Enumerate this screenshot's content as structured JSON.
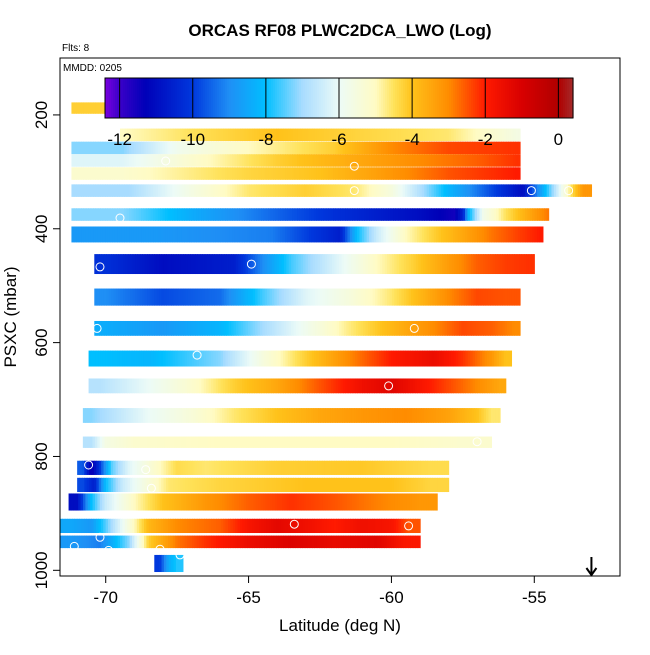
{
  "chart_data": {
    "type": "heatmap",
    "title": "ORCAS RF08 PLWC2DCA_LWO (Log)",
    "top_left_note": "Flts: 8",
    "panel_note": "MMDD: 0205",
    "xlabel": "Latitude (deg N)",
    "ylabel": "PSXC (mbar)",
    "xlim": [
      -71.6,
      -52.0
    ],
    "ylim": [
      1010,
      100
    ],
    "y_reversed": true,
    "grid": false,
    "x_ticks": [
      -70,
      -65,
      -60,
      -55
    ],
    "y_ticks": [
      200,
      400,
      600,
      800,
      1000
    ],
    "colorbar": {
      "position": "top-inside",
      "range": [
        -12.4,
        0.4
      ],
      "ticks": [
        -12,
        -10,
        -8,
        -6,
        -4,
        -2,
        0
      ],
      "stops": [
        {
          "v": -12.4,
          "c": "#7a00e0"
        },
        {
          "v": -12.0,
          "c": "#3a00c8"
        },
        {
          "v": -11.3,
          "c": "#0000b8"
        },
        {
          "v": -10.0,
          "c": "#0038dd"
        },
        {
          "v": -9.0,
          "c": "#1f8ff5"
        },
        {
          "v": -8.0,
          "c": "#00bfff"
        },
        {
          "v": -7.0,
          "c": "#a8dcff"
        },
        {
          "v": -6.0,
          "c": "#ecfbf7"
        },
        {
          "v": -5.0,
          "c": "#fffbc4"
        },
        {
          "v": -4.5,
          "c": "#ffe25a"
        },
        {
          "v": -4.0,
          "c": "#ffc21a"
        },
        {
          "v": -3.0,
          "c": "#ff8c00"
        },
        {
          "v": -2.0,
          "c": "#ff1a00"
        },
        {
          "v": -1.0,
          "c": "#d80000"
        },
        {
          "v": 0.0,
          "c": "#b00000"
        },
        {
          "v": 0.4,
          "c": "#a52a2a"
        }
      ]
    },
    "bands": [
      {
        "p": 188,
        "h": 20,
        "x0": -71.2,
        "x1": -56.0,
        "cells": [
          [
            -62.8,
            -4.2
          ],
          [
            -61.0,
            -4.6
          ],
          [
            -59.0,
            -6.0
          ],
          [
            -56.7,
            -8.0
          ]
        ]
      },
      {
        "p": 235,
        "h": 22,
        "x0": -69.5,
        "x1": -55.5,
        "cells": [
          [
            -69.4,
            -5.0
          ],
          [
            -67.0,
            -4.5
          ],
          [
            -64.0,
            -4.0
          ],
          [
            -61.0,
            -4.3
          ],
          [
            -58.0,
            -4.6
          ],
          [
            -55.6,
            -5.6
          ]
        ]
      },
      {
        "p": 258,
        "h": 22,
        "x0": -71.2,
        "x1": -55.5,
        "cells": [
          [
            -69.4,
            -7.2
          ],
          [
            -67.5,
            -5.8
          ],
          [
            -65.0,
            -5.0
          ],
          [
            -62.0,
            -4.2
          ],
          [
            -60.0,
            -3.0
          ],
          [
            -58.0,
            -2.4
          ],
          [
            -55.6,
            -2.2
          ]
        ]
      },
      {
        "p": 280,
        "h": 22,
        "x0": -71.2,
        "x1": -55.5,
        "cells": [
          [
            -69.4,
            -6.2
          ],
          [
            -67.0,
            -5.2
          ],
          [
            -64.0,
            -4.2
          ],
          [
            -61.5,
            -3.6
          ],
          [
            -59.0,
            -3.0
          ],
          [
            -57.0,
            -2.6
          ],
          [
            -55.6,
            -2.2
          ]
        ]
      },
      {
        "p": 303,
        "h": 22,
        "x0": -71.2,
        "x1": -55.5,
        "cells": [
          [
            -69.4,
            -5.2
          ],
          [
            -67.5,
            -4.8
          ],
          [
            -65.0,
            -4.3
          ],
          [
            -62.5,
            -4.0
          ],
          [
            -60.0,
            -3.2
          ],
          [
            -58.0,
            -2.5
          ],
          [
            -55.6,
            -2.0
          ]
        ]
      },
      {
        "p": 333,
        "h": 22,
        "x0": -71.2,
        "x1": -53.0,
        "cells": [
          [
            -69.2,
            -7.0
          ],
          [
            -67.0,
            -5.6
          ],
          [
            -65.0,
            -4.6
          ],
          [
            -63.0,
            -4.2
          ],
          [
            -61.3,
            -4.6
          ],
          [
            -60.0,
            -5.5
          ],
          [
            -58.0,
            -8.2
          ],
          [
            -56.3,
            -10.0
          ],
          [
            -55.4,
            -11.0
          ],
          [
            -55.0,
            -9.5
          ],
          [
            -54.6,
            -8.0
          ],
          [
            -54.2,
            -6.5
          ],
          [
            -53.7,
            -4.5
          ],
          [
            -53.3,
            -3.2
          ]
        ]
      },
      {
        "p": 375,
        "h": 22,
        "x0": -71.2,
        "x1": -54.5,
        "cells": [
          [
            -69.4,
            -7.2
          ],
          [
            -67.0,
            -8.4
          ],
          [
            -64.0,
            -9.5
          ],
          [
            -62.0,
            -10.2
          ],
          [
            -59.0,
            -11.0
          ],
          [
            -57.8,
            -11.5
          ],
          [
            -57.5,
            -10.5
          ],
          [
            -57.3,
            -8.2
          ],
          [
            -56.8,
            -5.8
          ],
          [
            -56.0,
            -4.5
          ],
          [
            -55.0,
            -3.3
          ],
          [
            -54.3,
            -2.6
          ]
        ]
      },
      {
        "p": 410,
        "h": 28,
        "x0": -71.2,
        "x1": -54.7,
        "cells": [
          [
            -68.2,
            -8.8
          ],
          [
            -64.2,
            -9.2
          ],
          [
            -61.8,
            -10.6
          ],
          [
            -61.2,
            -8.0
          ],
          [
            -60.5,
            -6.5
          ],
          [
            -59.5,
            -5.0
          ],
          [
            -58.5,
            -4.2
          ],
          [
            -57.5,
            -3.5
          ],
          [
            -56.5,
            -2.8
          ],
          [
            -55.5,
            -2.3
          ],
          [
            -54.8,
            -2.0
          ]
        ]
      },
      {
        "p": 462,
        "h": 35,
        "x0": -70.4,
        "x1": -55.0,
        "cells": [
          [
            -70.0,
            -10.2
          ],
          [
            -68.0,
            -11.0
          ],
          [
            -65.5,
            -10.6
          ],
          [
            -64.5,
            -9.0
          ],
          [
            -63.5,
            -7.6
          ],
          [
            -62.0,
            -6.3
          ],
          [
            -60.5,
            -5.0
          ],
          [
            -59.2,
            -4.2
          ],
          [
            -58.0,
            -3.3
          ],
          [
            -57.0,
            -2.6
          ],
          [
            -56.0,
            -2.3
          ],
          [
            -55.2,
            -2.2
          ]
        ]
      },
      {
        "p": 520,
        "h": 30,
        "x0": -70.4,
        "x1": -55.5,
        "cells": [
          [
            -70.0,
            -9.0
          ],
          [
            -68.0,
            -9.8
          ],
          [
            -66.0,
            -9.4
          ],
          [
            -64.5,
            -7.6
          ],
          [
            -63.0,
            -6.2
          ],
          [
            -61.5,
            -5.5
          ],
          [
            -60.0,
            -4.6
          ],
          [
            -59.0,
            -3.8
          ],
          [
            -58.0,
            -3.0
          ],
          [
            -57.0,
            -2.4
          ],
          [
            -56.0,
            -2.5
          ]
        ]
      },
      {
        "p": 575,
        "h": 26,
        "x0": -70.4,
        "x1": -55.5,
        "cells": [
          [
            -70.0,
            -8.4
          ],
          [
            -68.0,
            -8.8
          ],
          [
            -66.0,
            -8.2
          ],
          [
            -64.5,
            -7.0
          ],
          [
            -63.0,
            -5.8
          ],
          [
            -61.5,
            -4.7
          ],
          [
            -60.0,
            -3.8
          ],
          [
            -58.5,
            -3.0
          ],
          [
            -57.5,
            -2.4
          ],
          [
            -56.5,
            -2.6
          ],
          [
            -55.7,
            -3.0
          ]
        ]
      },
      {
        "p": 628,
        "h": 28,
        "x0": -70.6,
        "x1": -55.8,
        "cells": [
          [
            -70.2,
            -8.0
          ],
          [
            -68.5,
            -8.2
          ],
          [
            -67.0,
            -7.6
          ],
          [
            -66.0,
            -7.2
          ],
          [
            -64.5,
            -5.5
          ],
          [
            -63.0,
            -4.2
          ],
          [
            -61.5,
            -3.0
          ],
          [
            -60.0,
            -2.0
          ],
          [
            -58.5,
            -1.5
          ],
          [
            -57.5,
            -2.2
          ],
          [
            -56.5,
            -3.2
          ],
          [
            -56.0,
            -4.0
          ]
        ]
      },
      {
        "p": 676,
        "h": 26,
        "x0": -70.6,
        "x1": -56.0,
        "cells": [
          [
            -70.2,
            -6.8
          ],
          [
            -68.5,
            -6.0
          ],
          [
            -67.0,
            -5.2
          ],
          [
            -65.5,
            -4.2
          ],
          [
            -64.0,
            -3.5
          ],
          [
            -62.5,
            -2.5
          ],
          [
            -61.0,
            -1.6
          ],
          [
            -60.0,
            -1.2
          ],
          [
            -59.0,
            -1.8
          ],
          [
            -58.0,
            -2.4
          ],
          [
            -57.0,
            -3.0
          ],
          [
            -56.2,
            -3.5
          ]
        ]
      },
      {
        "p": 728,
        "h": 26,
        "x0": -70.8,
        "x1": -56.2,
        "cells": [
          [
            -70.5,
            -7.2
          ],
          [
            -68.5,
            -6.0
          ],
          [
            -67.0,
            -5.4
          ],
          [
            -65.5,
            -4.6
          ],
          [
            -64.0,
            -4.0
          ],
          [
            -62.5,
            -3.5
          ],
          [
            -61.0,
            -3.2
          ],
          [
            -59.5,
            -3.0
          ],
          [
            -58.0,
            -3.4
          ],
          [
            -57.0,
            -4.0
          ],
          [
            -56.5,
            -4.6
          ]
        ]
      },
      {
        "p": 775,
        "h": 20,
        "x0": -70.8,
        "x1": -56.5,
        "cells": [
          [
            -70.5,
            -6.8
          ],
          [
            -70.0,
            -5.6
          ],
          [
            -69.0,
            -5.2
          ],
          [
            -66.0,
            -5.0
          ],
          [
            -63.0,
            -5.0
          ],
          [
            -60.0,
            -5.0
          ],
          [
            -57.5,
            -5.2
          ]
        ]
      },
      {
        "p": 820,
        "h": 25,
        "x0": -71.0,
        "x1": -58.0,
        "cells": [
          [
            -70.8,
            -9.6
          ],
          [
            -70.5,
            -11.6
          ],
          [
            -70.2,
            -10.0
          ],
          [
            -69.8,
            -7.5
          ],
          [
            -69.2,
            -6.2
          ],
          [
            -68.3,
            -5.2
          ],
          [
            -67.5,
            -4.4
          ],
          [
            -66.5,
            -4.6
          ],
          [
            -64.0,
            -4.2
          ],
          [
            -61.0,
            -4.1
          ],
          [
            -58.6,
            -4.4
          ]
        ]
      },
      {
        "p": 850,
        "h": 25,
        "x0": -71.0,
        "x1": -58.0,
        "cells": [
          [
            -70.8,
            -9.8
          ],
          [
            -70.4,
            -10.6
          ],
          [
            -70.0,
            -8.0
          ],
          [
            -69.4,
            -6.5
          ],
          [
            -68.6,
            -5.5
          ],
          [
            -67.8,
            -4.6
          ],
          [
            -66.0,
            -4.3
          ],
          [
            -63.0,
            -4.0
          ],
          [
            -60.0,
            -4.0
          ],
          [
            -58.6,
            -4.3
          ]
        ]
      },
      {
        "p": 880,
        "h": 30,
        "x0": -71.3,
        "x1": -58.4,
        "cells": [
          [
            -71.0,
            -11.0
          ],
          [
            -70.5,
            -8.0
          ],
          [
            -70.0,
            -6.5
          ],
          [
            -69.0,
            -5.0
          ],
          [
            -68.0,
            -4.0
          ],
          [
            -66.5,
            -3.2
          ],
          [
            -65.0,
            -2.6
          ],
          [
            -63.5,
            -2.2
          ],
          [
            -62.0,
            -2.5
          ],
          [
            -60.5,
            -2.9
          ],
          [
            -59.0,
            -3.2
          ]
        ]
      },
      {
        "p": 922,
        "h": 25,
        "x0": -71.6,
        "x1": -59.0,
        "cells": [
          [
            -71.2,
            -8.5
          ],
          [
            -70.5,
            -8.8
          ],
          [
            -69.5,
            -6.2
          ],
          [
            -68.5,
            -3.8
          ],
          [
            -67.5,
            -3.0
          ],
          [
            -66.0,
            -2.6
          ],
          [
            -65.0,
            -1.8
          ],
          [
            -64.0,
            -1.3
          ],
          [
            -63.0,
            -1.6
          ],
          [
            -62.0,
            -2.0
          ],
          [
            -61.0,
            -1.6
          ],
          [
            -60.0,
            -1.8
          ],
          [
            -59.4,
            -2.5
          ]
        ]
      },
      {
        "p": 950,
        "h": 22,
        "x0": -71.6,
        "x1": -59.0,
        "cells": [
          [
            -71.2,
            -8.8
          ],
          [
            -70.2,
            -9.2
          ],
          [
            -69.2,
            -7.2
          ],
          [
            -68.5,
            -4.2
          ],
          [
            -67.5,
            -2.8
          ],
          [
            -66.5,
            -2.2
          ],
          [
            -65.0,
            -1.5
          ],
          [
            -63.5,
            -1.1
          ],
          [
            -62.0,
            -1.4
          ],
          [
            -60.5,
            -1.2
          ],
          [
            -59.5,
            -1.9
          ]
        ]
      },
      {
        "p": 988,
        "h": 30,
        "x0": -68.3,
        "x1": -67.3,
        "cells": [
          [
            -68.1,
            -10.0
          ],
          [
            -67.8,
            -8.4
          ],
          [
            -67.5,
            -7.8
          ]
        ]
      }
    ],
    "flight_markers": [
      [
        -62.9,
        188
      ],
      [
        -59.6,
        188
      ],
      [
        -56.4,
        188
      ],
      [
        -67.9,
        281
      ],
      [
        -61.3,
        290
      ],
      [
        -61.3,
        333
      ],
      [
        -55.1,
        333
      ],
      [
        -53.8,
        333
      ],
      [
        -69.5,
        381
      ],
      [
        -64.9,
        462
      ],
      [
        -70.2,
        467
      ],
      [
        -70.3,
        575
      ],
      [
        -59.2,
        575
      ],
      [
        -66.8,
        622
      ],
      [
        -60.1,
        676
      ],
      [
        -69.9,
        753
      ],
      [
        -70.6,
        815
      ],
      [
        -68.6,
        823
      ],
      [
        -68.4,
        856
      ],
      [
        -57.0,
        774
      ],
      [
        -70.2,
        942
      ],
      [
        -63.4,
        919
      ],
      [
        -59.4,
        922
      ],
      [
        -71.1,
        958
      ],
      [
        -69.9,
        965
      ],
      [
        -68.1,
        963
      ],
      [
        -67.4,
        973
      ]
    ],
    "direction_arrow": {
      "lat": -53.0,
      "symbol": "down"
    }
  }
}
